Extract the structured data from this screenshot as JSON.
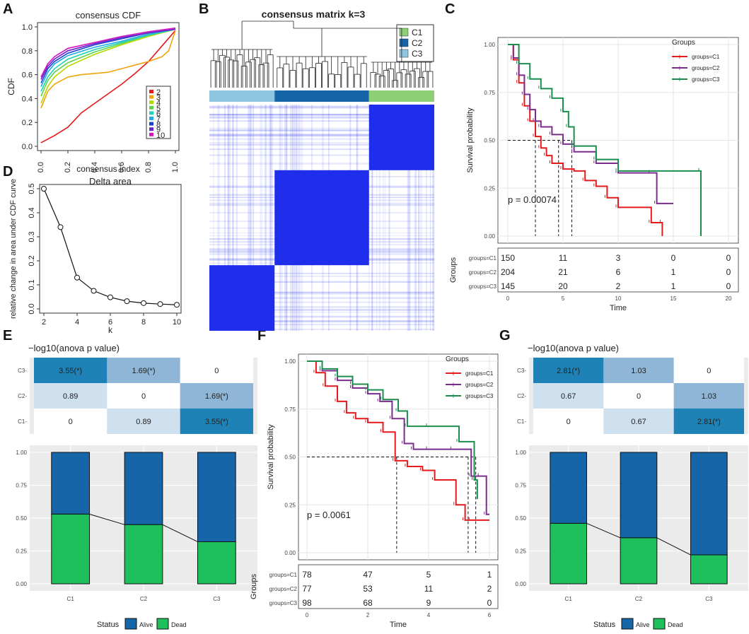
{
  "colors": {
    "c1": "#E41A1C",
    "c2": "#7B2D8E",
    "c3": "#1B8E4F",
    "alive": "#1565A8",
    "dead": "#1DC05A",
    "cons_light": "#8EC5E0",
    "cons_mid": "#1565A8",
    "cons_green": "#8CCF76",
    "matrix_blue": "#1E2EEB",
    "hm_dark": "#1F82B6",
    "hm_mid": "#8FB6D6",
    "hm_light": "#CFE0EF",
    "hm_white": "#FFFFFF",
    "panel_bg": "#EBEBEB"
  },
  "panel_labels": {
    "A": "A",
    "B": "B",
    "C": "C",
    "D": "D",
    "E": "E",
    "F": "F",
    "G": "G"
  },
  "chart_data": [
    {
      "id": "A",
      "type": "line",
      "title": "consensus CDF",
      "xlabel": "consensus index",
      "ylabel": "CDF",
      "xlim": [
        0,
        1
      ],
      "ylim": [
        0,
        1
      ],
      "xticks": [
        0.0,
        0.2,
        0.4,
        0.6,
        0.8,
        1.0
      ],
      "yticks": [
        0.0,
        0.2,
        0.4,
        0.6,
        0.8,
        1.0
      ],
      "tick_labels_x": [
        "0.0",
        "0.2",
        "0.4",
        "0.6",
        "0.8",
        "1.0"
      ],
      "tick_labels_y": [
        "0.0",
        "0.2",
        "0.4",
        "0.6",
        "0.8",
        "1.0"
      ],
      "legend": [
        "2",
        "3",
        "4",
        "5",
        "6",
        "7",
        "8",
        "9",
        "10"
      ],
      "legend_colors": [
        "#E41A1C",
        "#F0A30A",
        "#B5D800",
        "#5FD24C",
        "#22D2B0",
        "#20A8E0",
        "#1A3FD0",
        "#6A22C8",
        "#D214C0"
      ],
      "series": [
        {
          "name": "2",
          "x": [
            0,
            0.1,
            0.2,
            0.3,
            0.4,
            0.5,
            0.6,
            0.7,
            0.8,
            0.9,
            1.0
          ],
          "y": [
            0.03,
            0.09,
            0.16,
            0.28,
            0.36,
            0.44,
            0.52,
            0.61,
            0.71,
            0.84,
            0.97
          ]
        },
        {
          "name": "3",
          "x": [
            0,
            0.05,
            0.1,
            0.2,
            0.3,
            0.4,
            0.5,
            0.6,
            0.7,
            0.8,
            0.9,
            0.95,
            1.0
          ],
          "y": [
            0.32,
            0.46,
            0.52,
            0.58,
            0.6,
            0.61,
            0.62,
            0.65,
            0.68,
            0.71,
            0.75,
            0.8,
            0.97
          ]
        },
        {
          "name": "4",
          "x": [
            0,
            0.05,
            0.1,
            0.2,
            0.4,
            0.6,
            0.8,
            1.0
          ],
          "y": [
            0.36,
            0.5,
            0.58,
            0.67,
            0.77,
            0.85,
            0.92,
            0.98
          ]
        },
        {
          "name": "5",
          "x": [
            0,
            0.05,
            0.1,
            0.2,
            0.4,
            0.6,
            0.8,
            1.0
          ],
          "y": [
            0.42,
            0.55,
            0.62,
            0.7,
            0.79,
            0.86,
            0.93,
            0.98
          ]
        },
        {
          "name": "6",
          "x": [
            0,
            0.05,
            0.1,
            0.2,
            0.4,
            0.6,
            0.8,
            1.0
          ],
          "y": [
            0.46,
            0.58,
            0.65,
            0.73,
            0.81,
            0.87,
            0.93,
            0.98
          ]
        },
        {
          "name": "7",
          "x": [
            0,
            0.05,
            0.1,
            0.2,
            0.4,
            0.6,
            0.8,
            1.0
          ],
          "y": [
            0.5,
            0.62,
            0.69,
            0.76,
            0.83,
            0.88,
            0.94,
            0.98
          ]
        },
        {
          "name": "8",
          "x": [
            0,
            0.05,
            0.1,
            0.2,
            0.4,
            0.6,
            0.8,
            1.0
          ],
          "y": [
            0.53,
            0.65,
            0.71,
            0.78,
            0.85,
            0.9,
            0.95,
            0.98
          ]
        },
        {
          "name": "9",
          "x": [
            0,
            0.05,
            0.1,
            0.2,
            0.4,
            0.6,
            0.8,
            1.0
          ],
          "y": [
            0.56,
            0.67,
            0.73,
            0.8,
            0.86,
            0.91,
            0.95,
            0.98
          ]
        },
        {
          "name": "10",
          "x": [
            0,
            0.05,
            0.1,
            0.2,
            0.4,
            0.6,
            0.8,
            1.0
          ],
          "y": [
            0.58,
            0.69,
            0.75,
            0.82,
            0.87,
            0.92,
            0.96,
            0.99
          ]
        }
      ]
    },
    {
      "id": "B",
      "type": "heatmap",
      "title": "consensus matrix k=3",
      "legend": [
        "C1",
        "C2",
        "C3"
      ],
      "blocks": [
        {
          "cluster": "C3",
          "fraction_start": 0.0,
          "fraction_end": 0.29
        },
        {
          "cluster": "C2",
          "fraction_start": 0.29,
          "fraction_end": 0.71
        },
        {
          "cluster": "C1",
          "fraction_start": 0.71,
          "fraction_end": 1.0
        }
      ]
    },
    {
      "id": "C",
      "type": "line",
      "title": "",
      "xlabel": "Time",
      "ylabel": "Survival probability",
      "xlim": [
        0,
        20
      ],
      "ylim": [
        0,
        1
      ],
      "xticks": [
        0,
        5,
        10,
        15,
        20
      ],
      "yticks": [
        0,
        0.25,
        0.5,
        0.75,
        1.0
      ],
      "tick_labels_x": [
        "0",
        "5",
        "10",
        "15",
        "20"
      ],
      "tick_labels_y": [
        "0.00",
        "0.25",
        "0.50",
        "0.75",
        "1.00"
      ],
      "legend_title": "Groups",
      "legend": [
        "groups=C1",
        "groups=C2",
        "groups=C3"
      ],
      "pvalue": "p = 0.00074",
      "medians": [
        2.5,
        4.6,
        5.8
      ],
      "series": [
        {
          "name": "groups=C1",
          "x": [
            0,
            0.5,
            1,
            1.5,
            2,
            2.5,
            3,
            3.5,
            4,
            5,
            6,
            7,
            8,
            9,
            10,
            13,
            14,
            14
          ],
          "y": [
            1,
            0.92,
            0.8,
            0.68,
            0.6,
            0.52,
            0.46,
            0.42,
            0.38,
            0.35,
            0.34,
            0.29,
            0.26,
            0.2,
            0.15,
            0.07,
            0.07,
            0
          ]
        },
        {
          "name": "groups=C2",
          "x": [
            0,
            0.5,
            1,
            1.5,
            2,
            2.5,
            3,
            4,
            5,
            6,
            8,
            10,
            13,
            13.5,
            15
          ],
          "y": [
            1,
            0.93,
            0.84,
            0.74,
            0.66,
            0.6,
            0.57,
            0.53,
            0.48,
            0.44,
            0.38,
            0.33,
            0.33,
            0.17,
            0.17
          ]
        },
        {
          "name": "groups=C3",
          "x": [
            0,
            1,
            2,
            3,
            4,
            5,
            5.5,
            6,
            8,
            10,
            17.5,
            17.5
          ],
          "y": [
            1,
            0.9,
            0.82,
            0.77,
            0.72,
            0.65,
            0.57,
            0.47,
            0.4,
            0.34,
            0.34,
            0
          ]
        }
      ],
      "risk_table": {
        "title": "Groups",
        "rows": [
          "groups=C1",
          "groups=C2",
          "groups=C3"
        ],
        "times": [
          0,
          5,
          10,
          15,
          20
        ],
        "values": [
          [
            "150",
            "11",
            "3",
            "0",
            "0"
          ],
          [
            "204",
            "21",
            "6",
            "1",
            "0"
          ],
          [
            "145",
            "20",
            "2",
            "1",
            "0"
          ]
        ]
      }
    },
    {
      "id": "D",
      "type": "line",
      "title": "Delta area",
      "xlabel": "k",
      "ylabel": "relative change in area under CDF curve",
      "xlim": [
        2,
        10
      ],
      "ylim": [
        0,
        0.5
      ],
      "xticks": [
        2,
        4,
        6,
        8,
        10
      ],
      "yticks": [
        0,
        0.1,
        0.2,
        0.3,
        0.4,
        0.5
      ],
      "tick_labels_x": [
        "2",
        "4",
        "6",
        "8",
        "10"
      ],
      "tick_labels_y": [
        "0.0",
        "0.1",
        "0.2",
        "0.3",
        "0.4",
        "0.5"
      ],
      "x": [
        2,
        3,
        4,
        5,
        6,
        7,
        8,
        9,
        10
      ],
      "y": [
        0.5,
        0.34,
        0.13,
        0.075,
        0.048,
        0.032,
        0.024,
        0.02,
        0.017
      ]
    },
    {
      "id": "E",
      "type": "heatmap",
      "title": "−log10(anova p value)",
      "rows": [
        "C3",
        "C2",
        "C1"
      ],
      "cols": [
        "C1",
        "C2",
        "C3"
      ],
      "cells": [
        [
          "3.55(*)",
          "1.69(*)",
          "0"
        ],
        [
          "0.89",
          "0",
          "1.69(*)"
        ],
        [
          "0",
          "0.89",
          "3.55(*)"
        ]
      ],
      "shade": [
        [
          "dark",
          "mid",
          "white"
        ],
        [
          "light",
          "white",
          "mid"
        ],
        [
          "white",
          "light",
          "dark"
        ]
      ]
    },
    {
      "id": "E2",
      "type": "bar",
      "categories": [
        "C1",
        "C2",
        "C3"
      ],
      "series": [
        {
          "name": "Dead",
          "values": [
            0.53,
            0.45,
            0.32
          ]
        },
        {
          "name": "Alive",
          "values": [
            0.47,
            0.55,
            0.68
          ]
        }
      ],
      "ylim": [
        0,
        1
      ],
      "yticks": [
        "0.00",
        "0.25",
        "0.50",
        "0.75",
        "1.00"
      ],
      "legend_title": "Status",
      "legend": [
        "Alive",
        "Dead"
      ]
    },
    {
      "id": "F",
      "type": "line",
      "title": "",
      "xlabel": "Time",
      "ylabel": "Survival probability",
      "xlim": [
        0,
        6
      ],
      "ylim": [
        0,
        1
      ],
      "xticks": [
        0,
        2,
        4,
        6
      ],
      "yticks": [
        0,
        0.25,
        0.5,
        0.75,
        1.0
      ],
      "tick_labels_x": [
        "0",
        "2",
        "4",
        "6"
      ],
      "tick_labels_y": [
        "0.00",
        "0.25",
        "0.50",
        "0.75",
        "1.00"
      ],
      "legend_title": "Groups",
      "legend": [
        "groups=C1",
        "groups=C2",
        "groups=C3"
      ],
      "pvalue": "p = 0.0061",
      "medians": [
        2.95,
        5.3,
        5.55
      ],
      "series": [
        {
          "name": "groups=C1",
          "x": [
            0,
            0.3,
            0.6,
            1,
            1.3,
            1.6,
            2,
            2.5,
            2.9,
            3.3,
            3.8,
            4.2,
            4.9,
            5.2,
            5.4,
            6
          ],
          "y": [
            1,
            0.94,
            0.87,
            0.79,
            0.73,
            0.7,
            0.68,
            0.63,
            0.48,
            0.45,
            0.43,
            0.38,
            0.25,
            0.17,
            0.17,
            0.17
          ]
        },
        {
          "name": "groups=C2",
          "x": [
            0,
            0.5,
            1,
            1.5,
            2,
            2.4,
            2.8,
            3.2,
            3.5,
            4,
            4.8,
            5.4,
            5.7,
            5.9,
            6
          ],
          "y": [
            1,
            0.95,
            0.9,
            0.86,
            0.83,
            0.79,
            0.7,
            0.57,
            0.54,
            0.54,
            0.54,
            0.4,
            0.4,
            0.2,
            0.2
          ]
        },
        {
          "name": "groups=C3",
          "x": [
            0,
            0.5,
            1,
            1.5,
            2,
            2.5,
            3,
            3.3,
            4,
            5,
            5.5,
            5.6
          ],
          "y": [
            1,
            0.96,
            0.92,
            0.88,
            0.85,
            0.8,
            0.74,
            0.66,
            0.66,
            0.58,
            0.38,
            0.28
          ]
        }
      ],
      "risk_table": {
        "title": "Groups",
        "rows": [
          "groups=C1",
          "groups=C2",
          "groups=C3"
        ],
        "times": [
          0,
          2,
          4,
          6
        ],
        "values": [
          [
            "78",
            "47",
            "5",
            "1"
          ],
          [
            "77",
            "53",
            "11",
            "2"
          ],
          [
            "98",
            "68",
            "9",
            "0"
          ]
        ]
      }
    },
    {
      "id": "G",
      "type": "heatmap",
      "title": "−log10(anova p value)",
      "rows": [
        "C3",
        "C2",
        "C1"
      ],
      "cols": [
        "C1",
        "C2",
        "C3"
      ],
      "cells": [
        [
          "2.81(*)",
          "1.03",
          "0"
        ],
        [
          "0.67",
          "0",
          "1.03"
        ],
        [
          "0",
          "0.67",
          "2.81(*)"
        ]
      ],
      "shade": [
        [
          "dark",
          "mid",
          "white"
        ],
        [
          "light",
          "white",
          "mid"
        ],
        [
          "white",
          "light",
          "dark"
        ]
      ]
    },
    {
      "id": "G2",
      "type": "bar",
      "categories": [
        "C1",
        "C2",
        "C3"
      ],
      "series": [
        {
          "name": "Dead",
          "values": [
            0.46,
            0.35,
            0.22
          ]
        },
        {
          "name": "Alive",
          "values": [
            0.54,
            0.65,
            0.78
          ]
        }
      ],
      "ylim": [
        0,
        1
      ],
      "yticks": [
        "0.00",
        "0.25",
        "0.50",
        "0.75",
        "1.00"
      ],
      "legend_title": "Status",
      "legend": [
        "Alive",
        "Dead"
      ]
    }
  ]
}
